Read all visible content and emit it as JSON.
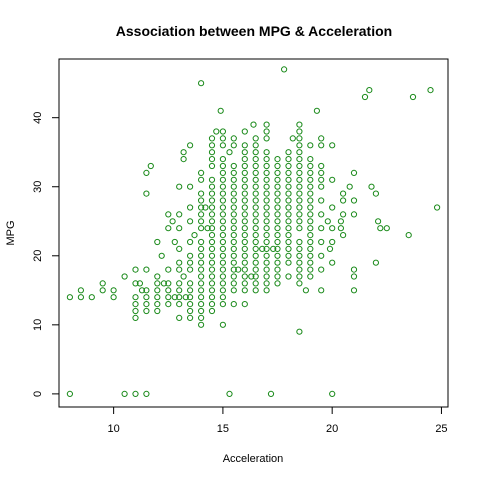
{
  "chart_data": {
    "type": "scatter",
    "title": "Association between MPG & Acceleration",
    "xlabel": "Acceleration",
    "ylabel": "MPG",
    "xlim": [
      7.5,
      25.3
    ],
    "ylim": [
      -1.9,
      48.5
    ],
    "x_ticks": [
      10,
      15,
      20,
      25
    ],
    "y_ticks": [
      0,
      10,
      20,
      30,
      40
    ],
    "grid": false,
    "legend": "none",
    "marker": "open-circle",
    "color": "#1a8a1a",
    "points": [
      [
        8.0,
        14
      ],
      [
        8.0,
        0
      ],
      [
        8.5,
        14
      ],
      [
        8.5,
        15
      ],
      [
        9.0,
        14
      ],
      [
        9.5,
        15
      ],
      [
        9.5,
        16
      ],
      [
        10.0,
        14
      ],
      [
        10.0,
        15
      ],
      [
        10.5,
        0
      ],
      [
        10.5,
        17
      ],
      [
        11.0,
        0
      ],
      [
        11.0,
        11
      ],
      [
        11.0,
        12
      ],
      [
        11.0,
        13
      ],
      [
        11.0,
        14
      ],
      [
        11.0,
        16
      ],
      [
        11.0,
        18
      ],
      [
        11.2,
        16
      ],
      [
        11.3,
        15
      ],
      [
        11.5,
        0
      ],
      [
        11.5,
        12
      ],
      [
        11.5,
        13
      ],
      [
        11.5,
        14
      ],
      [
        11.5,
        15
      ],
      [
        11.5,
        18
      ],
      [
        11.5,
        29
      ],
      [
        11.5,
        32
      ],
      [
        11.7,
        33
      ],
      [
        12.0,
        12
      ],
      [
        12.0,
        13
      ],
      [
        12.0,
        14
      ],
      [
        12.0,
        15
      ],
      [
        12.0,
        16
      ],
      [
        12.0,
        17
      ],
      [
        12.0,
        22
      ],
      [
        12.2,
        20
      ],
      [
        12.3,
        16
      ],
      [
        12.5,
        13
      ],
      [
        12.5,
        14
      ],
      [
        12.5,
        15
      ],
      [
        12.5,
        16
      ],
      [
        12.5,
        18
      ],
      [
        12.5,
        24
      ],
      [
        12.5,
        26
      ],
      [
        12.7,
        25
      ],
      [
        12.8,
        14
      ],
      [
        12.8,
        22
      ],
      [
        13.0,
        11
      ],
      [
        13.0,
        13
      ],
      [
        13.0,
        14
      ],
      [
        13.0,
        15
      ],
      [
        13.0,
        16
      ],
      [
        13.0,
        18
      ],
      [
        13.0,
        19
      ],
      [
        13.0,
        21
      ],
      [
        13.0,
        24
      ],
      [
        13.0,
        26
      ],
      [
        13.0,
        30
      ],
      [
        13.2,
        17
      ],
      [
        13.2,
        34
      ],
      [
        13.2,
        35
      ],
      [
        13.3,
        14
      ],
      [
        13.5,
        11
      ],
      [
        13.5,
        12
      ],
      [
        13.5,
        13
      ],
      [
        13.5,
        14
      ],
      [
        13.5,
        15
      ],
      [
        13.5,
        16
      ],
      [
        13.5,
        18
      ],
      [
        13.5,
        19
      ],
      [
        13.5,
        20
      ],
      [
        13.5,
        22
      ],
      [
        13.5,
        25
      ],
      [
        13.5,
        27
      ],
      [
        13.5,
        30
      ],
      [
        13.5,
        36
      ],
      [
        13.7,
        23
      ],
      [
        14.0,
        10
      ],
      [
        14.0,
        11
      ],
      [
        14.0,
        12
      ],
      [
        14.0,
        13
      ],
      [
        14.0,
        14
      ],
      [
        14.0,
        15
      ],
      [
        14.0,
        16
      ],
      [
        14.0,
        17
      ],
      [
        14.0,
        18
      ],
      [
        14.0,
        19
      ],
      [
        14.0,
        20
      ],
      [
        14.0,
        21
      ],
      [
        14.0,
        22
      ],
      [
        14.0,
        24
      ],
      [
        14.0,
        25
      ],
      [
        14.0,
        26
      ],
      [
        14.0,
        27
      ],
      [
        14.0,
        28
      ],
      [
        14.0,
        29
      ],
      [
        14.0,
        31
      ],
      [
        14.0,
        32
      ],
      [
        14.0,
        45
      ],
      [
        14.2,
        27
      ],
      [
        14.3,
        24
      ],
      [
        14.5,
        12
      ],
      [
        14.5,
        13
      ],
      [
        14.5,
        14
      ],
      [
        14.5,
        15
      ],
      [
        14.5,
        16
      ],
      [
        14.5,
        17
      ],
      [
        14.5,
        18
      ],
      [
        14.5,
        19
      ],
      [
        14.5,
        20
      ],
      [
        14.5,
        21
      ],
      [
        14.5,
        22
      ],
      [
        14.5,
        23
      ],
      [
        14.5,
        24
      ],
      [
        14.5,
        25
      ],
      [
        14.5,
        26
      ],
      [
        14.5,
        27
      ],
      [
        14.5,
        28
      ],
      [
        14.5,
        29
      ],
      [
        14.5,
        30
      ],
      [
        14.5,
        31
      ],
      [
        14.5,
        33
      ],
      [
        14.5,
        34
      ],
      [
        14.5,
        35
      ],
      [
        14.5,
        36
      ],
      [
        14.5,
        37
      ],
      [
        14.7,
        38
      ],
      [
        14.9,
        41
      ],
      [
        15.0,
        10
      ],
      [
        15.0,
        13
      ],
      [
        15.0,
        14
      ],
      [
        15.0,
        15
      ],
      [
        15.0,
        16
      ],
      [
        15.0,
        17
      ],
      [
        15.0,
        18
      ],
      [
        15.0,
        19
      ],
      [
        15.0,
        20
      ],
      [
        15.0,
        21
      ],
      [
        15.0,
        22
      ],
      [
        15.0,
        23
      ],
      [
        15.0,
        24
      ],
      [
        15.0,
        25
      ],
      [
        15.0,
        26
      ],
      [
        15.0,
        27
      ],
      [
        15.0,
        28
      ],
      [
        15.0,
        29
      ],
      [
        15.0,
        30
      ],
      [
        15.0,
        31
      ],
      [
        15.0,
        32
      ],
      [
        15.0,
        33
      ],
      [
        15.0,
        34
      ],
      [
        15.0,
        36
      ],
      [
        15.0,
        37
      ],
      [
        15.0,
        38
      ],
      [
        15.3,
        0
      ],
      [
        15.3,
        35
      ],
      [
        15.5,
        13
      ],
      [
        15.5,
        15
      ],
      [
        15.5,
        16
      ],
      [
        15.5,
        17
      ],
      [
        15.5,
        18
      ],
      [
        15.5,
        19
      ],
      [
        15.5,
        20
      ],
      [
        15.5,
        21
      ],
      [
        15.5,
        22
      ],
      [
        15.5,
        23
      ],
      [
        15.5,
        24
      ],
      [
        15.5,
        25
      ],
      [
        15.5,
        26
      ],
      [
        15.5,
        27
      ],
      [
        15.5,
        28
      ],
      [
        15.5,
        29
      ],
      [
        15.5,
        30
      ],
      [
        15.5,
        31
      ],
      [
        15.5,
        32
      ],
      [
        15.5,
        33
      ],
      [
        15.5,
        36
      ],
      [
        15.5,
        37
      ],
      [
        15.7,
        18
      ],
      [
        16.0,
        13
      ],
      [
        16.0,
        15
      ],
      [
        16.0,
        16
      ],
      [
        16.0,
        17
      ],
      [
        16.0,
        18
      ],
      [
        16.0,
        19
      ],
      [
        16.0,
        20
      ],
      [
        16.0,
        21
      ],
      [
        16.0,
        22
      ],
      [
        16.0,
        23
      ],
      [
        16.0,
        24
      ],
      [
        16.0,
        25
      ],
      [
        16.0,
        26
      ],
      [
        16.0,
        27
      ],
      [
        16.0,
        28
      ],
      [
        16.0,
        29
      ],
      [
        16.0,
        30
      ],
      [
        16.0,
        31
      ],
      [
        16.0,
        32
      ],
      [
        16.0,
        33
      ],
      [
        16.0,
        34
      ],
      [
        16.0,
        35
      ],
      [
        16.0,
        36
      ],
      [
        16.0,
        38
      ],
      [
        16.3,
        17
      ],
      [
        16.4,
        39
      ],
      [
        16.5,
        15
      ],
      [
        16.5,
        16
      ],
      [
        16.5,
        17
      ],
      [
        16.5,
        18
      ],
      [
        16.5,
        19
      ],
      [
        16.5,
        20
      ],
      [
        16.5,
        21
      ],
      [
        16.5,
        22
      ],
      [
        16.5,
        23
      ],
      [
        16.5,
        24
      ],
      [
        16.5,
        25
      ],
      [
        16.5,
        26
      ],
      [
        16.5,
        27
      ],
      [
        16.5,
        28
      ],
      [
        16.5,
        29
      ],
      [
        16.5,
        30
      ],
      [
        16.5,
        31
      ],
      [
        16.5,
        32
      ],
      [
        16.5,
        33
      ],
      [
        16.5,
        34
      ],
      [
        16.5,
        35
      ],
      [
        16.5,
        36
      ],
      [
        16.5,
        37
      ],
      [
        16.8,
        21
      ],
      [
        17.0,
        15
      ],
      [
        17.0,
        16
      ],
      [
        17.0,
        17
      ],
      [
        17.0,
        18
      ],
      [
        17.0,
        19
      ],
      [
        17.0,
        20
      ],
      [
        17.0,
        21
      ],
      [
        17.0,
        22
      ],
      [
        17.0,
        23
      ],
      [
        17.0,
        24
      ],
      [
        17.0,
        25
      ],
      [
        17.0,
        26
      ],
      [
        17.0,
        27
      ],
      [
        17.0,
        28
      ],
      [
        17.0,
        29
      ],
      [
        17.0,
        30
      ],
      [
        17.0,
        31
      ],
      [
        17.0,
        32
      ],
      [
        17.0,
        33
      ],
      [
        17.0,
        34
      ],
      [
        17.0,
        35
      ],
      [
        17.0,
        37
      ],
      [
        17.0,
        38
      ],
      [
        17.0,
        39
      ],
      [
        17.2,
        0
      ],
      [
        17.3,
        21
      ],
      [
        17.5,
        16
      ],
      [
        17.5,
        17
      ],
      [
        17.5,
        18
      ],
      [
        17.5,
        19
      ],
      [
        17.5,
        20
      ],
      [
        17.5,
        21
      ],
      [
        17.5,
        22
      ],
      [
        17.5,
        23
      ],
      [
        17.5,
        24
      ],
      [
        17.5,
        25
      ],
      [
        17.5,
        26
      ],
      [
        17.5,
        27
      ],
      [
        17.5,
        28
      ],
      [
        17.5,
        29
      ],
      [
        17.5,
        30
      ],
      [
        17.5,
        31
      ],
      [
        17.5,
        32
      ],
      [
        17.5,
        33
      ],
      [
        17.5,
        34
      ],
      [
        17.8,
        47
      ],
      [
        18.0,
        17
      ],
      [
        18.0,
        19
      ],
      [
        18.0,
        20
      ],
      [
        18.0,
        21
      ],
      [
        18.0,
        22
      ],
      [
        18.0,
        23
      ],
      [
        18.0,
        24
      ],
      [
        18.0,
        25
      ],
      [
        18.0,
        26
      ],
      [
        18.0,
        27
      ],
      [
        18.0,
        28
      ],
      [
        18.0,
        29
      ],
      [
        18.0,
        30
      ],
      [
        18.0,
        31
      ],
      [
        18.0,
        32
      ],
      [
        18.0,
        33
      ],
      [
        18.0,
        34
      ],
      [
        18.0,
        35
      ],
      [
        18.2,
        37
      ],
      [
        18.5,
        9
      ],
      [
        18.5,
        16
      ],
      [
        18.5,
        17
      ],
      [
        18.5,
        18
      ],
      [
        18.5,
        19
      ],
      [
        18.5,
        20
      ],
      [
        18.5,
        21
      ],
      [
        18.5,
        22
      ],
      [
        18.5,
        24
      ],
      [
        18.5,
        25
      ],
      [
        18.5,
        26
      ],
      [
        18.5,
        27
      ],
      [
        18.5,
        28
      ],
      [
        18.5,
        29
      ],
      [
        18.5,
        30
      ],
      [
        18.5,
        31
      ],
      [
        18.5,
        32
      ],
      [
        18.5,
        33
      ],
      [
        18.5,
        34
      ],
      [
        18.5,
        35
      ],
      [
        18.5,
        36
      ],
      [
        18.5,
        37
      ],
      [
        18.5,
        38
      ],
      [
        18.5,
        39
      ],
      [
        18.8,
        15
      ],
      [
        19.0,
        17
      ],
      [
        19.0,
        18
      ],
      [
        19.0,
        19
      ],
      [
        19.0,
        20
      ],
      [
        19.0,
        21
      ],
      [
        19.0,
        22
      ],
      [
        19.0,
        23
      ],
      [
        19.0,
        24
      ],
      [
        19.0,
        25
      ],
      [
        19.0,
        26
      ],
      [
        19.0,
        27
      ],
      [
        19.0,
        28
      ],
      [
        19.0,
        29
      ],
      [
        19.0,
        30
      ],
      [
        19.0,
        31
      ],
      [
        19.0,
        32
      ],
      [
        19.0,
        33
      ],
      [
        19.0,
        34
      ],
      [
        19.0,
        36
      ],
      [
        19.3,
        41
      ],
      [
        19.5,
        15
      ],
      [
        19.5,
        18
      ],
      [
        19.5,
        20
      ],
      [
        19.5,
        22
      ],
      [
        19.5,
        24
      ],
      [
        19.5,
        26
      ],
      [
        19.5,
        28
      ],
      [
        19.5,
        30
      ],
      [
        19.5,
        31
      ],
      [
        19.5,
        32
      ],
      [
        19.5,
        33
      ],
      [
        19.5,
        36
      ],
      [
        19.5,
        37
      ],
      [
        19.8,
        25
      ],
      [
        19.9,
        21
      ],
      [
        20.0,
        0
      ],
      [
        20.0,
        19
      ],
      [
        20.0,
        22
      ],
      [
        20.0,
        24
      ],
      [
        20.0,
        27
      ],
      [
        20.0,
        31
      ],
      [
        20.0,
        36
      ],
      [
        20.4,
        24
      ],
      [
        20.4,
        25
      ],
      [
        20.5,
        23
      ],
      [
        20.5,
        26
      ],
      [
        20.5,
        28
      ],
      [
        20.5,
        29
      ],
      [
        20.8,
        30
      ],
      [
        21.0,
        15
      ],
      [
        21.0,
        17
      ],
      [
        21.0,
        18
      ],
      [
        21.0,
        26
      ],
      [
        21.0,
        28
      ],
      [
        21.0,
        32
      ],
      [
        21.5,
        43
      ],
      [
        21.7,
        44
      ],
      [
        21.8,
        30
      ],
      [
        22.0,
        19
      ],
      [
        22.0,
        29
      ],
      [
        22.1,
        25
      ],
      [
        22.2,
        24
      ],
      [
        22.5,
        24
      ],
      [
        23.5,
        23
      ],
      [
        23.7,
        43
      ],
      [
        24.5,
        44
      ],
      [
        24.8,
        27
      ]
    ]
  }
}
